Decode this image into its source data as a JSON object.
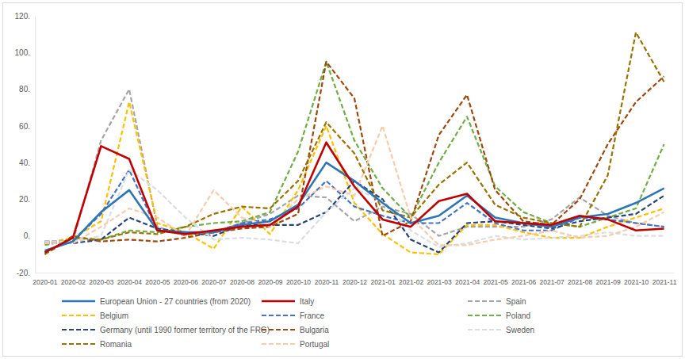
{
  "chart_data": {
    "type": "line",
    "categories": [
      "2020-01",
      "2020-02",
      "2020-03",
      "2020-04",
      "2020-05",
      "2020-06",
      "2020-07",
      "2020-08",
      "2020-09",
      "2020-10",
      "2020-11",
      "2020-12",
      "2021-01",
      "2021-02",
      "2021-03",
      "2021-04",
      "2021-05",
      "2021-06",
      "2021-07",
      "2021-08",
      "2021-09",
      "2021-10",
      "2021-11"
    ],
    "ylim": [
      -20,
      120
    ],
    "yticks": [
      {
        "value": -20,
        "label": "-20."
      },
      {
        "value": 0,
        "label": "0."
      },
      {
        "value": 20,
        "label": "20."
      },
      {
        "value": 40,
        "label": "40."
      },
      {
        "value": 60,
        "label": "60."
      },
      {
        "value": 80,
        "label": "80."
      },
      {
        "value": 100,
        "label": "100."
      },
      {
        "value": 120,
        "label": "120."
      }
    ],
    "grid": false,
    "legend": "bottom",
    "series": [
      {
        "name": "European Union - 27 countries (from 2020)",
        "color": "#2e75b6",
        "line_style": "solid",
        "values": [
          -8,
          -3,
          13,
          25,
          3,
          2,
          2,
          6,
          8,
          17,
          40,
          30,
          18,
          7,
          11,
          22,
          10,
          7,
          5,
          10,
          12,
          18,
          26
        ]
      },
      {
        "name": "Italy",
        "color": "#c00000",
        "line_style": "solid",
        "values": [
          -9,
          -1,
          49,
          42,
          3,
          1,
          3,
          5,
          6,
          16,
          51,
          27,
          9,
          5,
          19,
          23,
          8,
          7,
          6,
          11,
          9,
          3,
          4
        ]
      },
      {
        "name": "Spain",
        "color": "#a5a5a5",
        "line_style": "dashed",
        "values": [
          -3,
          -3,
          52,
          80,
          5,
          0,
          2,
          7,
          12,
          22,
          21,
          8,
          16,
          12,
          0,
          5,
          5,
          5,
          9,
          21,
          11,
          7,
          5
        ]
      },
      {
        "name": "Belgium",
        "color": "#ffc000",
        "line_style": "dashed",
        "values": [
          -4,
          -1,
          8,
          73,
          7,
          2,
          -7,
          16,
          1,
          25,
          60,
          18,
          1,
          -9,
          -10,
          6,
          6,
          2,
          -1,
          -1,
          5,
          10,
          15
        ]
      },
      {
        "name": "France",
        "color": "#4472c4",
        "line_style": "dashed",
        "values": [
          -3,
          -3,
          12,
          36,
          3,
          2,
          2,
          7,
          9,
          15,
          30,
          16,
          11,
          7,
          7,
          18,
          7,
          3,
          3,
          10,
          9,
          7,
          5
        ]
      },
      {
        "name": "Poland",
        "color": "#70ad47",
        "line_style": "dashed",
        "values": [
          -5,
          -2,
          -2,
          3,
          2,
          5,
          7,
          8,
          13,
          46,
          95,
          52,
          26,
          10,
          40,
          65,
          27,
          13,
          7,
          5,
          10,
          15,
          50
        ]
      },
      {
        "name": "Germany (until 1990 former territory of the FRG)",
        "color": "#264478",
        "line_style": "dashed",
        "values": [
          -4,
          -4,
          -2,
          10,
          4,
          2,
          0,
          6,
          6,
          6,
          13,
          30,
          20,
          -2,
          -9,
          7,
          8,
          6,
          4,
          8,
          10,
          12,
          22
        ]
      },
      {
        "name": "Bulgaria",
        "color": "#9e480e",
        "line_style": "dashed",
        "values": [
          -10,
          0,
          -3,
          -2,
          -3,
          -1,
          2,
          4,
          5,
          12,
          95,
          75,
          0,
          8,
          55,
          77,
          25,
          8,
          6,
          20,
          50,
          73,
          87
        ]
      },
      {
        "name": "Sweden",
        "color": "#d9dde6",
        "line_style": "dashed",
        "values": [
          -3,
          -3,
          0,
          36,
          25,
          10,
          -2,
          -1,
          -2,
          -4,
          13,
          26,
          19,
          3,
          -6,
          -4,
          0,
          -2,
          -1,
          0,
          2,
          0,
          0
        ]
      },
      {
        "name": "Romania",
        "color": "#997300",
        "line_style": "dashed",
        "values": [
          -10,
          -1,
          -2,
          2,
          1,
          5,
          12,
          16,
          15,
          30,
          62,
          45,
          14,
          10,
          28,
          40,
          17,
          10,
          7,
          5,
          33,
          111,
          84
        ]
      },
      {
        "name": "Portugal",
        "color": "#f8cbad",
        "line_style": "dashed",
        "values": [
          -4,
          -4,
          5,
          15,
          10,
          0,
          25,
          10,
          5,
          20,
          27,
          22,
          60,
          10,
          -5,
          -5,
          -2,
          0,
          3,
          -1,
          0,
          5,
          13
        ]
      }
    ]
  }
}
